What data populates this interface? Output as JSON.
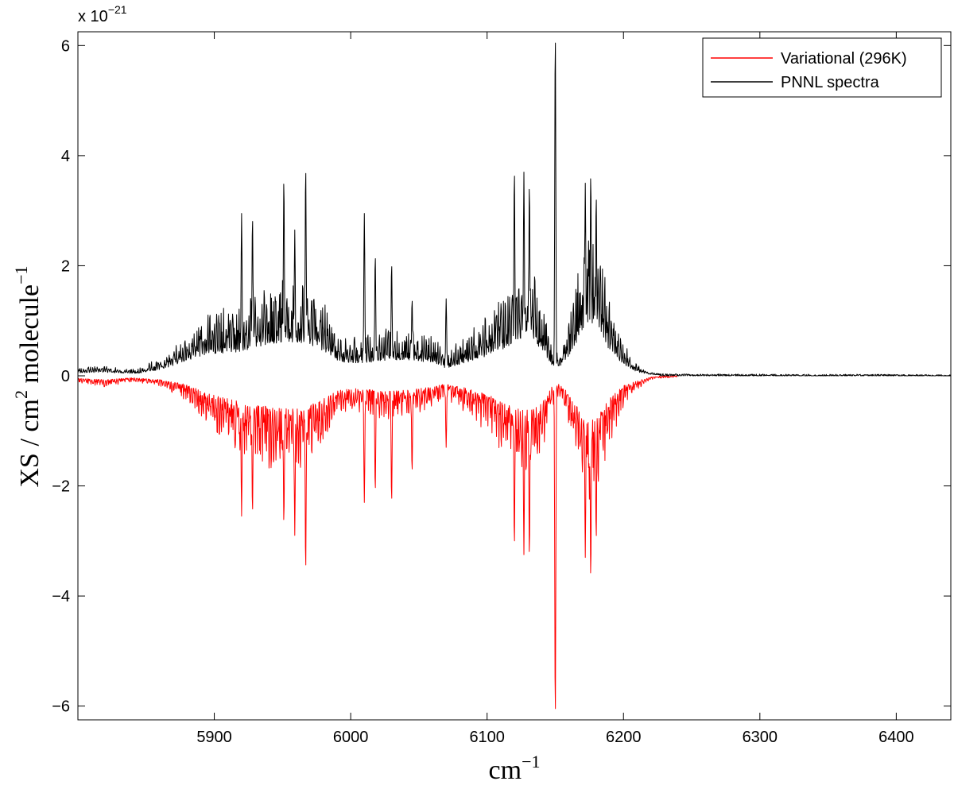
{
  "chart_data": {
    "type": "line",
    "title": "",
    "xlabel": {
      "base": "cm",
      "sup": "−1"
    },
    "ylabel": {
      "p1": "XS / cm",
      "sup1": "2",
      "p2": " molecule",
      "sup2": "−1"
    },
    "y_multiplier": {
      "base": "x 10",
      "sup": "−21"
    },
    "xlim": [
      5800,
      6440
    ],
    "ylim": [
      -6.25,
      6.25
    ],
    "x_ticks": [
      5900,
      6000,
      6100,
      6200,
      6300,
      6400
    ],
    "y_ticks": [
      -6,
      -4,
      -2,
      0,
      2,
      4,
      6
    ],
    "x_tick_labels": [
      "5900",
      "6000",
      "6100",
      "6200",
      "6300",
      "6400"
    ],
    "y_tick_labels": [
      "−6",
      "−4",
      "−2",
      "0",
      "2",
      "4",
      "6"
    ],
    "grid": false,
    "legend_position": "top-right",
    "series": [
      {
        "name": "Variational (296K)",
        "color": "#ff0000",
        "sign": -1,
        "envelope": [
          [
            5800,
            0.1
          ],
          [
            5820,
            0.15
          ],
          [
            5840,
            0.08
          ],
          [
            5860,
            0.15
          ],
          [
            5880,
            0.35
          ],
          [
            5895,
            0.7
          ],
          [
            5905,
            0.85
          ],
          [
            5912,
            0.95
          ],
          [
            5925,
            1.1
          ],
          [
            5940,
            1.25
          ],
          [
            5955,
            1.3
          ],
          [
            5965,
            1.3
          ],
          [
            5978,
            1.0
          ],
          [
            5990,
            0.6
          ],
          [
            6000,
            0.5
          ],
          [
            6015,
            0.55
          ],
          [
            6030,
            0.6
          ],
          [
            6045,
            0.55
          ],
          [
            6060,
            0.45
          ],
          [
            6070,
            0.3
          ],
          [
            6085,
            0.5
          ],
          [
            6100,
            0.75
          ],
          [
            6115,
            1.1
          ],
          [
            6125,
            1.4
          ],
          [
            6135,
            1.3
          ],
          [
            6142,
            0.9
          ],
          [
            6148,
            0.4
          ],
          [
            6152,
            0.3
          ],
          [
            6160,
            0.7
          ],
          [
            6168,
            1.4
          ],
          [
            6175,
            1.8
          ],
          [
            6182,
            1.5
          ],
          [
            6190,
            0.9
          ],
          [
            6200,
            0.4
          ],
          [
            6210,
            0.2
          ],
          [
            6220,
            0.05
          ],
          [
            6230,
            0.01
          ],
          [
            6240,
            0
          ]
        ],
        "peaks": [
          [
            5920,
            2.55
          ],
          [
            5928,
            2.5
          ],
          [
            5951,
            2.7
          ],
          [
            5959,
            2.9
          ],
          [
            5967,
            3.55
          ],
          [
            6010,
            2.3
          ],
          [
            6018,
            2.1
          ],
          [
            6030,
            2.3
          ],
          [
            6045,
            1.75
          ],
          [
            6070,
            1.3
          ],
          [
            6120,
            3.1
          ],
          [
            6127,
            3.25
          ],
          [
            6131,
            3.3
          ],
          [
            6150,
            6.25
          ],
          [
            6172,
            3.3
          ],
          [
            6176,
            3.7
          ],
          [
            6180,
            3.0
          ]
        ]
      },
      {
        "name": "PNNL spectra",
        "color": "#000000",
        "sign": 1,
        "envelope": [
          [
            5800,
            0.12
          ],
          [
            5820,
            0.14
          ],
          [
            5835,
            0.1
          ],
          [
            5845,
            0.1
          ],
          [
            5860,
            0.25
          ],
          [
            5875,
            0.5
          ],
          [
            5890,
            0.8
          ],
          [
            5905,
            0.9
          ],
          [
            5915,
            0.95
          ],
          [
            5925,
            1.05
          ],
          [
            5940,
            1.3
          ],
          [
            5955,
            1.35
          ],
          [
            5968,
            1.3
          ],
          [
            5980,
            1.0
          ],
          [
            5990,
            0.6
          ],
          [
            6000,
            0.5
          ],
          [
            6015,
            0.55
          ],
          [
            6030,
            0.65
          ],
          [
            6045,
            0.6
          ],
          [
            6060,
            0.55
          ],
          [
            6070,
            0.3
          ],
          [
            6085,
            0.55
          ],
          [
            6100,
            0.8
          ],
          [
            6115,
            1.15
          ],
          [
            6125,
            1.45
          ],
          [
            6135,
            1.35
          ],
          [
            6142,
            0.9
          ],
          [
            6148,
            0.4
          ],
          [
            6152,
            0.3
          ],
          [
            6160,
            0.8
          ],
          [
            6168,
            1.6
          ],
          [
            6175,
            2.05
          ],
          [
            6182,
            1.7
          ],
          [
            6190,
            1.0
          ],
          [
            6200,
            0.45
          ],
          [
            6210,
            0.15
          ],
          [
            6220,
            0.05
          ],
          [
            6230,
            0.01
          ],
          [
            6440,
            0
          ]
        ],
        "peaks": [
          [
            5920,
            2.95
          ],
          [
            5928,
            2.9
          ],
          [
            5951,
            3.6
          ],
          [
            5959,
            2.65
          ],
          [
            5967,
            3.8
          ],
          [
            6010,
            2.95
          ],
          [
            6018,
            2.2
          ],
          [
            6030,
            2.05
          ],
          [
            6045,
            1.4
          ],
          [
            6070,
            1.4
          ],
          [
            6120,
            3.75
          ],
          [
            6127,
            3.7
          ],
          [
            6131,
            3.5
          ],
          [
            6150,
            6.25
          ],
          [
            6172,
            3.5
          ],
          [
            6176,
            3.7
          ],
          [
            6180,
            3.3
          ]
        ]
      }
    ]
  }
}
